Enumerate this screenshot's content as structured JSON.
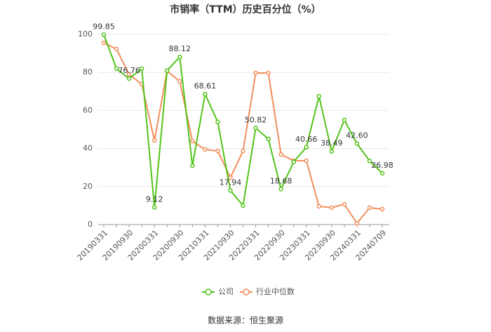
{
  "chart_data": {
    "type": "line",
    "title": "市销率（TTM）历史百分位（%）",
    "source": "数据来源：恒生聚源",
    "categories": [
      "20190331",
      null,
      "20190930",
      null,
      "20200331",
      null,
      "20200930",
      null,
      "20210331",
      null,
      "20210930",
      null,
      "20220331",
      null,
      "20220930",
      null,
      "20230331",
      null,
      "20230930",
      null,
      "20240331",
      null,
      "20240709"
    ],
    "series": [
      {
        "name": "公司",
        "color": "#52c41a",
        "values": [
          99.85,
          82,
          76.76,
          82,
          9.12,
          81,
          88.12,
          31,
          68.61,
          54,
          17.94,
          10,
          50.82,
          45,
          18.68,
          33,
          40.66,
          67.5,
          38.49,
          55,
          42.6,
          33.5,
          26.98
        ],
        "value_labels": [
          "99.85",
          null,
          "76.76",
          null,
          "9.12",
          null,
          "88.12",
          null,
          "68.61",
          null,
          "17.94",
          null,
          "50.82",
          null,
          "18.68",
          null,
          "40.66",
          null,
          "38.49",
          null,
          "42.60",
          null,
          "26.98"
        ]
      },
      {
        "name": "行业中位数",
        "color": "#f28e5c",
        "values": [
          95.6,
          92.3,
          79,
          73.8,
          44.3,
          80.8,
          75.3,
          43.9,
          39.5,
          38.7,
          24.7,
          38.7,
          79.7,
          79.7,
          36.9,
          33.6,
          33.6,
          9.6,
          8.9,
          10.7,
          0.7,
          8.9,
          8.1
        ]
      }
    ],
    "ylim": [
      0,
      100
    ],
    "yticks": [
      0,
      20,
      40,
      60,
      80,
      100
    ],
    "grid": true,
    "legend": "bottom"
  }
}
